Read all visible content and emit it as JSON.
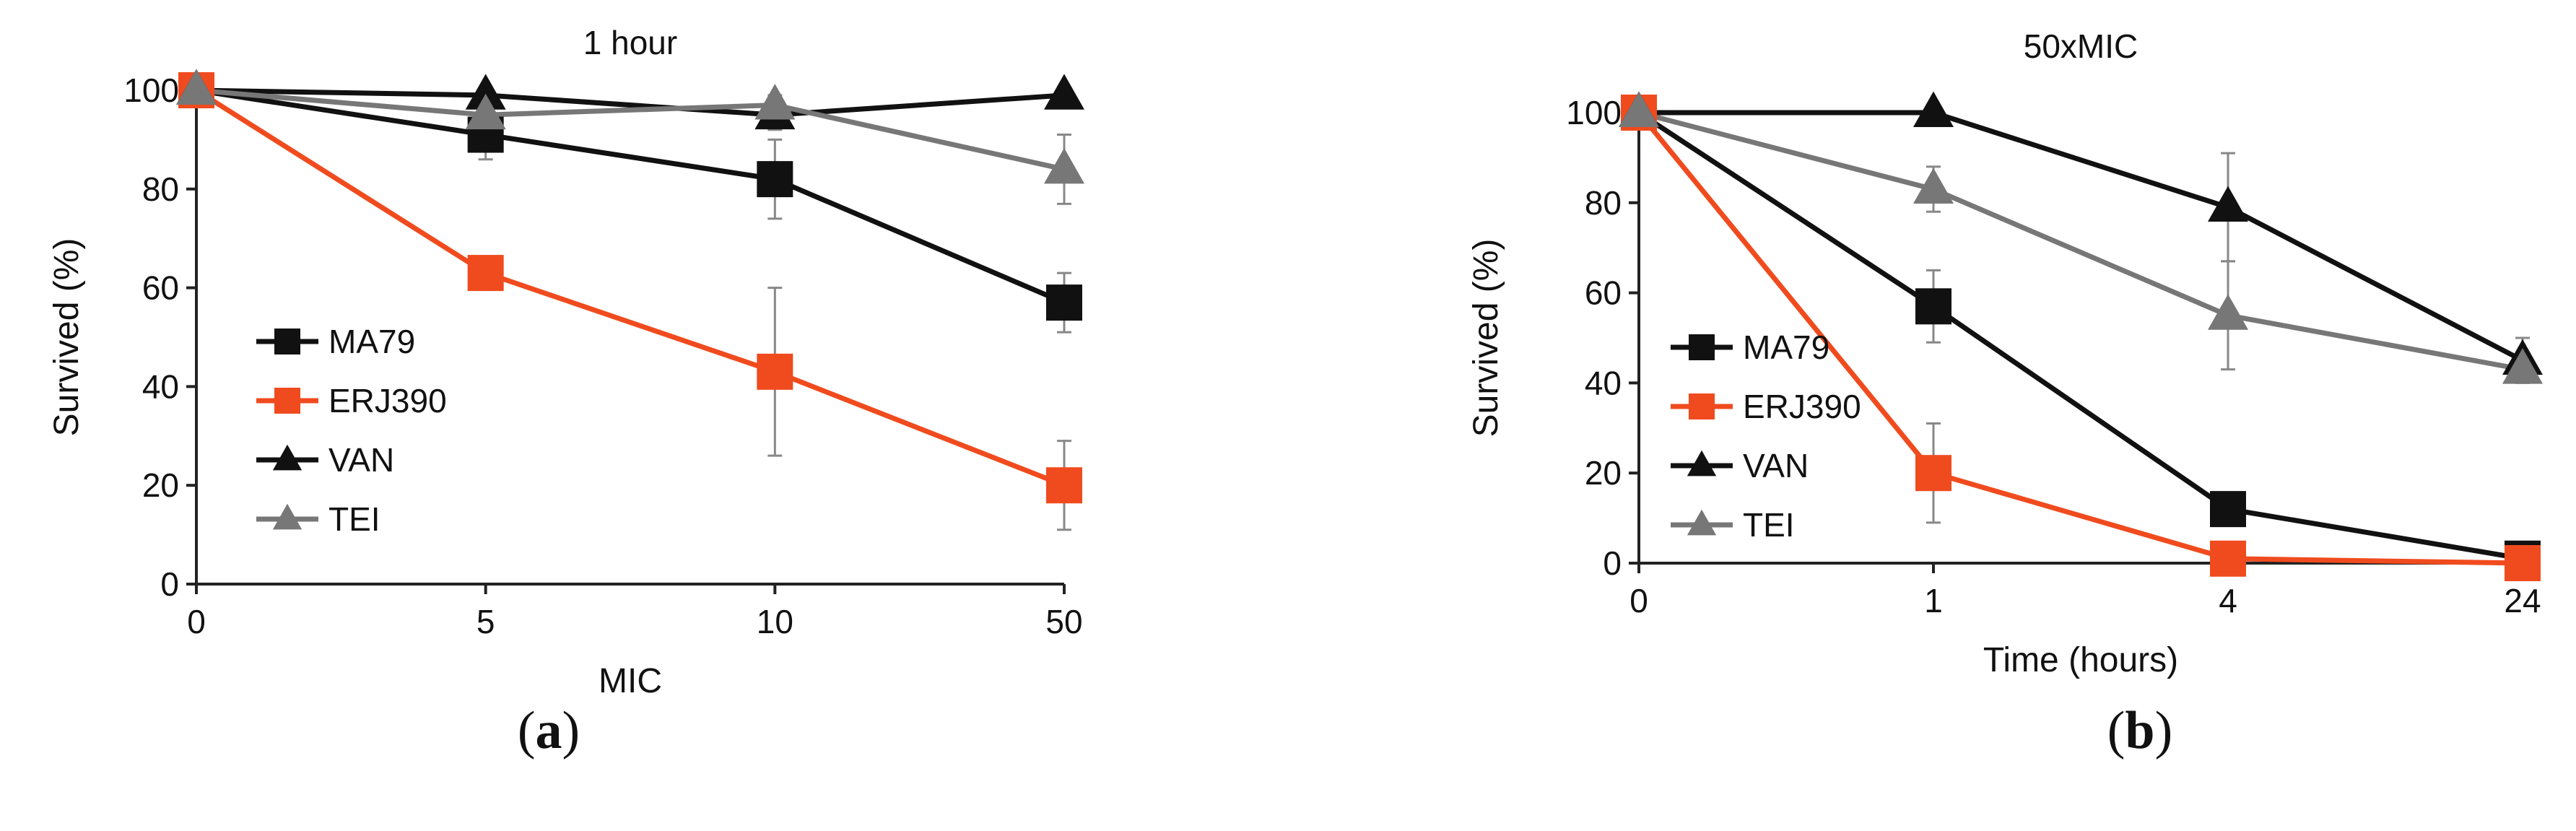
{
  "chart_data": [
    {
      "type": "line",
      "panel_label": "a",
      "title": "1 hour",
      "xlabel": "MIC",
      "ylabel": "Survived (%)",
      "categories": [
        "0",
        "5",
        "10",
        "50"
      ],
      "ylim": [
        0,
        100
      ],
      "yticks": [
        0,
        20,
        40,
        60,
        80,
        100
      ],
      "grid": false,
      "legend_position": "left",
      "series": [
        {
          "name": "MA79",
          "marker": "square",
          "color": "#111111",
          "values": [
            100,
            91,
            82,
            57
          ],
          "errors": [
            0,
            5,
            8,
            6
          ]
        },
        {
          "name": "ERJ390",
          "marker": "square",
          "color": "#f04b1e",
          "values": [
            100,
            63,
            43,
            20
          ],
          "errors": [
            0,
            0,
            17,
            9
          ]
        },
        {
          "name": "VAN",
          "marker": "triangle",
          "color": "#111111",
          "values": [
            100,
            99,
            95,
            99
          ],
          "errors": [
            0,
            0,
            3,
            0
          ]
        },
        {
          "name": "TEI",
          "marker": "triangle",
          "color": "#777777",
          "values": [
            100,
            95,
            97,
            84
          ],
          "errors": [
            0,
            0,
            2,
            7
          ]
        }
      ]
    },
    {
      "type": "line",
      "panel_label": "b",
      "title": "50xMIC",
      "xlabel": "Time (hours)",
      "ylabel": "Survived (%)",
      "categories": [
        "0",
        "1",
        "4",
        "24"
      ],
      "ylim": [
        0,
        100
      ],
      "yticks": [
        0,
        20,
        40,
        60,
        80,
        100
      ],
      "grid": false,
      "legend_position": "left",
      "series": [
        {
          "name": "MA79",
          "marker": "square",
          "color": "#111111",
          "values": [
            100,
            57,
            12,
            1
          ],
          "errors": [
            0,
            8,
            0,
            0
          ]
        },
        {
          "name": "ERJ390",
          "marker": "square",
          "color": "#f04b1e",
          "values": [
            100,
            20,
            1,
            0
          ],
          "errors": [
            0,
            11,
            0,
            0
          ]
        },
        {
          "name": "VAN",
          "marker": "triangle",
          "color": "#111111",
          "values": [
            100,
            100,
            79,
            45
          ],
          "errors": [
            0,
            0,
            12,
            5
          ]
        },
        {
          "name": "TEI",
          "marker": "triangle",
          "color": "#777777",
          "values": [
            100,
            83,
            55,
            43
          ],
          "errors": [
            0,
            5,
            12,
            0
          ]
        }
      ]
    }
  ]
}
